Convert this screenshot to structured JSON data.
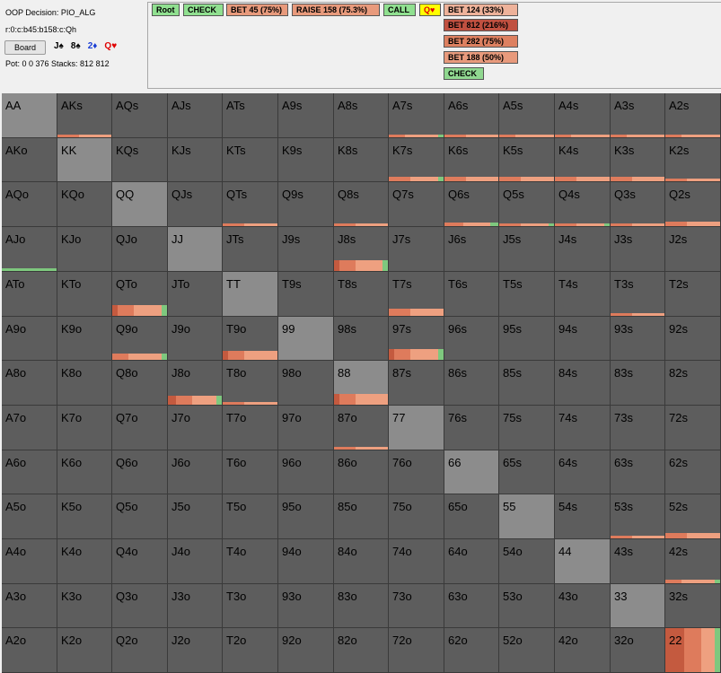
{
  "info": {
    "decision_label": "OOP Decision:",
    "decision_value": "PIO_ALG",
    "line_path": "r:0:c:b45:b158:c:Qh",
    "board_button": "Board",
    "cards": [
      {
        "text": "J♠",
        "color": "#000000"
      },
      {
        "text": "8♠",
        "color": "#000000"
      },
      {
        "text": "2♦",
        "color": "#1a3ed4"
      },
      {
        "text": "Q♥",
        "color": "#e00000"
      }
    ],
    "pot_stacks": "Pot: 0 0 376 Stacks: 812 812"
  },
  "tree": {
    "nodes": [
      {
        "label": "Root",
        "color": "#90e090"
      },
      {
        "label": "CHECK",
        "color": "#90e090"
      },
      {
        "label": "BET 45 (75%)",
        "color": "#e89a7c"
      },
      {
        "label": "RAISE 158 (75.3%)",
        "color": "#e89a7c"
      },
      {
        "label": "CALL",
        "color": "#90e090"
      },
      {
        "label": "Q♥",
        "color": "#ffff00"
      },
      {
        "label": "BET 124 (33%)",
        "color": "#eeb29a"
      },
      {
        "label": "BET 812 (216%)",
        "color": "#c05040"
      },
      {
        "label": "BET 282 (75%)",
        "color": "#dd8060"
      },
      {
        "label": "BET 188 (50%)",
        "color": "#e89a7c"
      },
      {
        "label": "CHECK",
        "color": "#90d890"
      }
    ]
  },
  "colors": {
    "bet_large": "#c45a3f",
    "bet_mid": "#de7b5c",
    "bet_small": "#eea080",
    "check": "#7ec87e"
  },
  "grid": {
    "rows": [
      [
        "AA",
        "AKs",
        "AQs",
        "AJs",
        "ATs",
        "A9s",
        "A8s",
        "A7s",
        "A6s",
        "A5s",
        "A4s",
        "A3s",
        "A2s"
      ],
      [
        "AKo",
        "KK",
        "KQs",
        "KJs",
        "KTs",
        "K9s",
        "K8s",
        "K7s",
        "K6s",
        "K5s",
        "K4s",
        "K3s",
        "K2s"
      ],
      [
        "AQo",
        "KQo",
        "QQ",
        "QJs",
        "QTs",
        "Q9s",
        "Q8s",
        "Q7s",
        "Q6s",
        "Q5s",
        "Q4s",
        "Q3s",
        "Q2s"
      ],
      [
        "AJo",
        "KJo",
        "QJo",
        "JJ",
        "JTs",
        "J9s",
        "J8s",
        "J7s",
        "J6s",
        "J5s",
        "J4s",
        "J3s",
        "J2s"
      ],
      [
        "ATo",
        "KTo",
        "QTo",
        "JTo",
        "TT",
        "T9s",
        "T8s",
        "T7s",
        "T6s",
        "T5s",
        "T4s",
        "T3s",
        "T2s"
      ],
      [
        "A9o",
        "K9o",
        "Q9o",
        "J9o",
        "T9o",
        "99",
        "98s",
        "97s",
        "96s",
        "95s",
        "94s",
        "93s",
        "92s"
      ],
      [
        "A8o",
        "K8o",
        "Q8o",
        "J8o",
        "T8o",
        "98o",
        "88",
        "87s",
        "86s",
        "85s",
        "84s",
        "83s",
        "82s"
      ],
      [
        "A7o",
        "K7o",
        "Q7o",
        "J7o",
        "T7o",
        "97o",
        "87o",
        "77",
        "76s",
        "75s",
        "74s",
        "73s",
        "72s"
      ],
      [
        "A6o",
        "K6o",
        "Q6o",
        "J6o",
        "T6o",
        "96o",
        "86o",
        "76o",
        "66",
        "65s",
        "64s",
        "63s",
        "62s"
      ],
      [
        "A5o",
        "K5o",
        "Q5o",
        "J5o",
        "T5o",
        "95o",
        "85o",
        "75o",
        "65o",
        "55",
        "54s",
        "53s",
        "52s"
      ],
      [
        "A4o",
        "K4o",
        "Q4o",
        "J4o",
        "T4o",
        "94o",
        "84o",
        "74o",
        "64o",
        "54o",
        "44",
        "43s",
        "42s"
      ],
      [
        "A3o",
        "K3o",
        "Q3o",
        "J3o",
        "T3o",
        "93o",
        "83o",
        "73o",
        "63o",
        "53o",
        "43o",
        "33",
        "32s"
      ],
      [
        "A2o",
        "K2o",
        "Q2o",
        "J2o",
        "T2o",
        "92o",
        "82o",
        "72o",
        "62o",
        "52o",
        "42o",
        "32o",
        "22"
      ]
    ],
    "strategy": {
      "AKs": {
        "freq": 0.04,
        "mix": [
          0,
          0.4,
          0.6,
          0
        ]
      },
      "A7s": {
        "freq": 0.05,
        "mix": [
          0,
          0.3,
          0.6,
          0.1
        ]
      },
      "A6s": {
        "freq": 0.05,
        "mix": [
          0,
          0.4,
          0.6,
          0
        ]
      },
      "A5s": {
        "freq": 0.04,
        "mix": [
          0,
          0.3,
          0.7,
          0
        ]
      },
      "A4s": {
        "freq": 0.03,
        "mix": [
          0,
          0.3,
          0.7,
          0
        ]
      },
      "A3s": {
        "freq": 0.06,
        "mix": [
          0,
          0.3,
          0.7,
          0
        ]
      },
      "A2s": {
        "freq": 0.06,
        "mix": [
          0,
          0.3,
          0.7,
          0
        ]
      },
      "K7s": {
        "freq": 0.1,
        "mix": [
          0,
          0.4,
          0.5,
          0.1
        ]
      },
      "K6s": {
        "freq": 0.1,
        "mix": [
          0,
          0.4,
          0.6,
          0
        ]
      },
      "K5s": {
        "freq": 0.1,
        "mix": [
          0,
          0.4,
          0.6,
          0
        ]
      },
      "K4s": {
        "freq": 0.1,
        "mix": [
          0,
          0.4,
          0.6,
          0
        ]
      },
      "K3s": {
        "freq": 0.1,
        "mix": [
          0,
          0.4,
          0.6,
          0
        ]
      },
      "K2s": {
        "freq": 0.07,
        "mix": [
          0,
          0.4,
          0.6,
          0
        ]
      },
      "QTs": {
        "freq": 0.04,
        "mix": [
          0,
          0.4,
          0.6,
          0
        ]
      },
      "Q8s": {
        "freq": 0.04,
        "mix": [
          0,
          0.4,
          0.6,
          0
        ]
      },
      "Q6s": {
        "freq": 0.09,
        "mix": [
          0,
          0.35,
          0.5,
          0.15
        ]
      },
      "Q5s": {
        "freq": 0.07,
        "mix": [
          0,
          0.4,
          0.5,
          0.1
        ]
      },
      "Q4s": {
        "freq": 0.07,
        "mix": [
          0,
          0.4,
          0.5,
          0.1
        ]
      },
      "Q3s": {
        "freq": 0.07,
        "mix": [
          0,
          0.4,
          0.6,
          0
        ]
      },
      "Q2s": {
        "freq": 0.1,
        "mix": [
          0,
          0.4,
          0.6,
          0
        ]
      },
      "AJo": {
        "freq": 0.05,
        "mix": [
          0,
          0,
          0,
          1
        ]
      },
      "J8s": {
        "freq": 0.24,
        "mix": [
          0.1,
          0.3,
          0.5,
          0.1
        ]
      },
      "QTo": {
        "freq": 0.24,
        "mix": [
          0.1,
          0.3,
          0.5,
          0.1
        ]
      },
      "T7s": {
        "freq": 0.16,
        "mix": [
          0,
          0.4,
          0.6,
          0
        ]
      },
      "T3s": {
        "freq": 0.04,
        "mix": [
          0,
          0.4,
          0.6,
          0
        ]
      },
      "Q9o": {
        "freq": 0.14,
        "mix": [
          0,
          0.3,
          0.6,
          0.1
        ]
      },
      "T9o": {
        "freq": 0.2,
        "mix": [
          0.1,
          0.3,
          0.6,
          0
        ]
      },
      "97s": {
        "freq": 0.24,
        "mix": [
          0.1,
          0.3,
          0.5,
          0.1
        ]
      },
      "J8o": {
        "freq": 0.2,
        "mix": [
          0.15,
          0.3,
          0.45,
          0.1
        ]
      },
      "88": {
        "freq": 0.24,
        "mix": [
          0.1,
          0.3,
          0.6,
          0
        ]
      },
      "T8o": {
        "freq": 0.04,
        "mix": [
          0,
          0.4,
          0.6,
          0
        ]
      },
      "87o": {
        "freq": 0.04,
        "mix": [
          0,
          0.4,
          0.6,
          0
        ]
      },
      "53s": {
        "freq": 0.05,
        "mix": [
          0,
          0.4,
          0.6,
          0
        ]
      },
      "52s": {
        "freq": 0.12,
        "mix": [
          0,
          0.4,
          0.6,
          0
        ]
      },
      "42s": {
        "freq": 0.08,
        "mix": [
          0,
          0.3,
          0.6,
          0.1
        ]
      },
      "22": {
        "freq": 1.0,
        "mix": [
          0.35,
          0.3,
          0.25,
          0.1
        ]
      }
    }
  }
}
